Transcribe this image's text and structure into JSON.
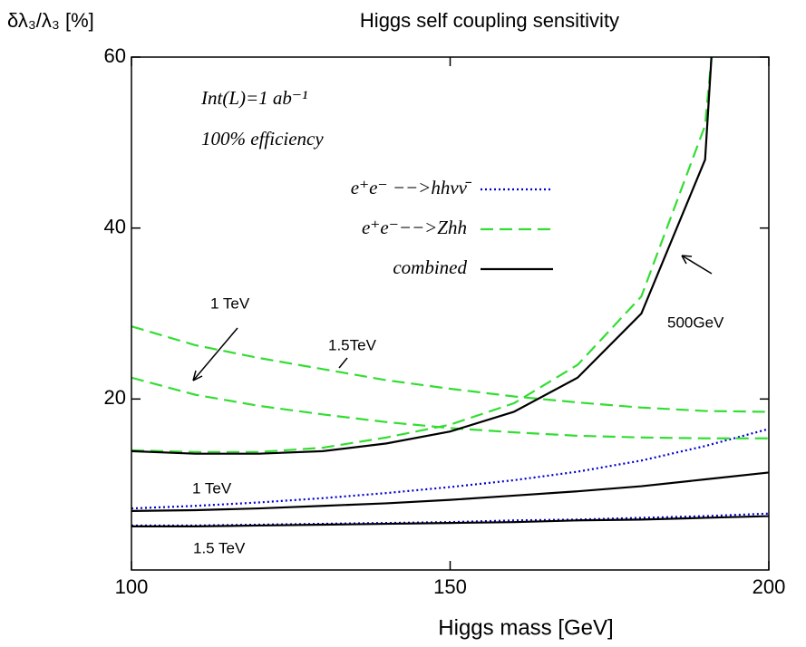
{
  "chart_data": {
    "type": "line",
    "title": "Higgs self coupling sensitivity",
    "y_label": "δλ₃/λ₃ [%]",
    "x_label": "Higgs mass [GeV]",
    "notes": [
      "Int(L)=1 ab⁻¹",
      "100% efficiency"
    ],
    "annotations": [
      "1 TeV",
      "1.5TeV",
      "500GeV",
      "1 TeV",
      "1.5 TeV"
    ],
    "xlim": [
      100,
      200
    ],
    "ylim": [
      0,
      60
    ],
    "xticks": [
      100,
      150,
      200
    ],
    "yticks": [
      20,
      40,
      60
    ],
    "series": [
      {
        "name": "e⁺e⁻ −−>hhνν̄",
        "color": "#0000cc",
        "style": "dotted",
        "x": [
          100,
          110,
          120,
          130,
          140,
          150,
          160,
          170,
          180,
          190,
          200
        ],
        "values": [
          7.2,
          7.5,
          7.9,
          8.4,
          9.0,
          9.7,
          10.5,
          11.5,
          12.8,
          14.5,
          16.5
        ]
      },
      {
        "name": "e⁺e⁻ −−>hhνν̄",
        "color": "#0000cc",
        "style": "dotted",
        "x": [
          100,
          110,
          120,
          130,
          140,
          150,
          160,
          170,
          180,
          190,
          200
        ],
        "values": [
          5.2,
          5.2,
          5.3,
          5.4,
          5.5,
          5.6,
          5.8,
          5.9,
          6.1,
          6.3,
          6.6
        ]
      },
      {
        "name": "e⁺e⁻−−>Zhh",
        "color": "#33dd33",
        "style": "dashed",
        "x": [
          100,
          110,
          120,
          130,
          140,
          150,
          160,
          170,
          180,
          190,
          191
        ],
        "values": [
          14.0,
          13.8,
          13.8,
          14.3,
          15.5,
          17.0,
          19.5,
          24.0,
          32.0,
          52.0,
          60.0
        ]
      },
      {
        "name": "e⁺e⁻−−>Zhh",
        "color": "#33dd33",
        "style": "dashed",
        "x": [
          100,
          110,
          120,
          130,
          140,
          150,
          160,
          170,
          180,
          190,
          200
        ],
        "values": [
          28.5,
          26.3,
          24.8,
          23.5,
          22.2,
          21.2,
          20.3,
          19.6,
          19.0,
          18.6,
          18.5
        ]
      },
      {
        "name": "e⁺e⁻−−>Zhh",
        "color": "#33dd33",
        "style": "dashed",
        "x": [
          100,
          110,
          120,
          130,
          140,
          150,
          160,
          170,
          180,
          190,
          200
        ],
        "values": [
          22.5,
          20.5,
          19.2,
          18.2,
          17.3,
          16.6,
          16.1,
          15.7,
          15.5,
          15.4,
          15.4
        ]
      },
      {
        "name": "combined",
        "color": "#000000",
        "style": "solid",
        "x": [
          100,
          110,
          120,
          130,
          140,
          150,
          160,
          170,
          180,
          190,
          191
        ],
        "values": [
          13.9,
          13.6,
          13.6,
          13.9,
          14.8,
          16.2,
          18.5,
          22.5,
          30.0,
          48.0,
          60.0
        ]
      },
      {
        "name": "combined",
        "color": "#000000",
        "style": "solid",
        "x": [
          100,
          110,
          120,
          130,
          140,
          150,
          160,
          170,
          180,
          190,
          200
        ],
        "values": [
          6.9,
          7.0,
          7.2,
          7.5,
          7.8,
          8.2,
          8.7,
          9.2,
          9.8,
          10.6,
          11.4
        ]
      },
      {
        "name": "combined",
        "color": "#000000",
        "style": "solid",
        "x": [
          100,
          110,
          120,
          130,
          140,
          150,
          160,
          170,
          180,
          190,
          200
        ],
        "values": [
          5.1,
          5.1,
          5.2,
          5.3,
          5.4,
          5.5,
          5.6,
          5.8,
          5.9,
          6.1,
          6.3
        ]
      }
    ]
  }
}
